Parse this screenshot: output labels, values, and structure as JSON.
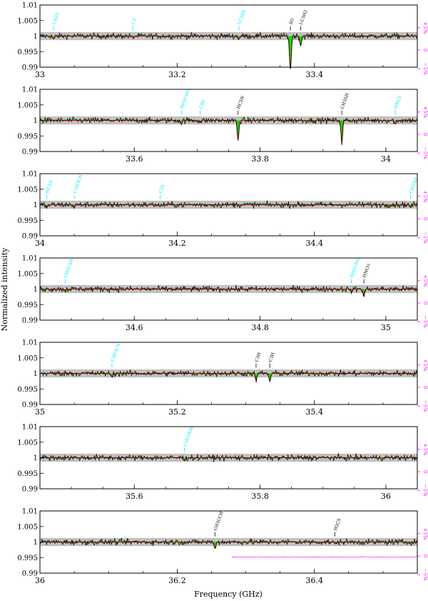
{
  "chart_data": {
    "type": "line",
    "ylabel": "Normalized intensity",
    "xlabel": "Frequency (GHz)",
    "ylim": [
      0.99,
      1.01
    ],
    "yticks": [
      "1.01",
      "1.005",
      "1",
      "0.995",
      "0.99"
    ],
    "ytick_values": [
      1.01,
      1.005,
      1.0,
      0.995,
      0.99
    ],
    "residual_ticks": [
      "+5%",
      "0",
      "−5%"
    ],
    "colors": {
      "model": "#ff0000",
      "data": "#000000",
      "fill": "#00e000",
      "noise_band": "#c0c0c0",
      "residual": "#ff00ff",
      "unidentified_label": "#00e5ff",
      "identified_label": "#000000"
    },
    "panels": [
      {
        "xlim": [
          33.0,
          33.55
        ],
        "xticks": [
          {
            "value": 33.0,
            "label": "33"
          },
          {
            "value": 33.2,
            "label": "33.2"
          },
          {
            "value": 33.4,
            "label": "33.4"
          }
        ],
        "lines": [
          {
            "freq": 33.02,
            "label": "C4H2",
            "kind": "u",
            "depth": 0.001
          },
          {
            "freq": 33.135,
            "label": "C3",
            "kind": "u",
            "depth": 0.0006
          },
          {
            "freq": 33.29,
            "label": "l-C3H4",
            "kind": "u",
            "depth": 0.0008
          },
          {
            "freq": 33.365,
            "label": "SO",
            "kind": "id",
            "depth": 0.011
          },
          {
            "freq": 33.38,
            "label": "l-C3H2",
            "kind": "id",
            "depth": 0.003
          }
        ]
      },
      {
        "xlim": [
          33.45,
          34.05
        ],
        "xticks": [
          {
            "value": 33.6,
            "label": "33.6"
          },
          {
            "value": 33.8,
            "label": "33.8"
          },
          {
            "value": 34.0,
            "label": "34"
          }
        ],
        "lines": [
          {
            "freq": 33.675,
            "label": "NH2CHO",
            "kind": "u",
            "depth": 0.001
          },
          {
            "freq": 33.705,
            "label": "C5O",
            "kind": "u",
            "depth": 0.0005
          },
          {
            "freq": 33.765,
            "label": "HC5N",
            "kind": "id",
            "depth": 0.0065
          },
          {
            "freq": 33.93,
            "label": "CH3SH",
            "kind": "id",
            "depth": 0.0075
          },
          {
            "freq": 34.015,
            "label": "HNCS",
            "kind": "u",
            "depth": 0.0012
          }
        ]
      },
      {
        "xlim": [
          34.0,
          34.55
        ],
        "xticks": [
          {
            "value": 34.0,
            "label": "34"
          },
          {
            "value": 34.2,
            "label": "34.2"
          },
          {
            "value": 34.4,
            "label": "34.4"
          }
        ],
        "lines": [
          {
            "freq": 34.01,
            "label": "HC5N",
            "kind": "u",
            "depth": 0.001
          },
          {
            "freq": 34.05,
            "label": "C2H3CN",
            "kind": "u",
            "depth": 0.0008
          },
          {
            "freq": 34.175,
            "label": "C2S",
            "kind": "u",
            "depth": 0.0006
          },
          {
            "freq": 34.54,
            "label": "CH3SH",
            "kind": "u",
            "depth": 0.0008
          }
        ]
      },
      {
        "xlim": [
          34.45,
          35.05
        ],
        "xticks": [
          {
            "value": 34.6,
            "label": "34.6"
          },
          {
            "value": 34.8,
            "label": "34.8"
          },
          {
            "value": 35.0,
            "label": "35"
          }
        ],
        "lines": [
          {
            "freq": 34.49,
            "label": "CH3C4H",
            "kind": "u",
            "depth": 0.0006
          },
          {
            "freq": 34.945,
            "label": "NH2CHO",
            "kind": "u",
            "depth": 0.0008
          },
          {
            "freq": 34.965,
            "label": "HNCO",
            "kind": "id",
            "depth": 0.0025
          }
        ]
      },
      {
        "xlim": [
          35.0,
          35.55
        ],
        "xticks": [
          {
            "value": 35.0,
            "label": "35"
          },
          {
            "value": 35.2,
            "label": "35.2"
          },
          {
            "value": 35.4,
            "label": "35.4"
          }
        ],
        "lines": [
          {
            "freq": 35.105,
            "label": "C3H3CN",
            "kind": "u",
            "depth": 0.0012
          },
          {
            "freq": 35.315,
            "label": "C3H",
            "kind": "id",
            "depth": 0.0022
          },
          {
            "freq": 35.335,
            "label": "C3H",
            "kind": "id",
            "depth": 0.0025
          }
        ]
      },
      {
        "xlim": [
          35.45,
          36.05
        ],
        "xticks": [
          {
            "value": 35.6,
            "label": "35.6"
          },
          {
            "value": 35.8,
            "label": "35.8"
          },
          {
            "value": 36.0,
            "label": "36"
          }
        ],
        "lines": [
          {
            "freq": 35.68,
            "label": "t-HCOOH",
            "kind": "u",
            "depth": 0.0008
          }
        ]
      },
      {
        "xlim": [
          36.0,
          36.55
        ],
        "xticks": [
          {
            "value": 36.0,
            "label": "36"
          },
          {
            "value": 36.2,
            "label": "36.2"
          },
          {
            "value": 36.4,
            "label": "36.4"
          }
        ],
        "lines": [
          {
            "freq": 36.255,
            "label": "CH3CCH",
            "kind": "id",
            "depth": 0.002
          },
          {
            "freq": 36.43,
            "label": "H2CS",
            "kind": "id",
            "depth": 0.0006
          }
        ]
      }
    ]
  }
}
